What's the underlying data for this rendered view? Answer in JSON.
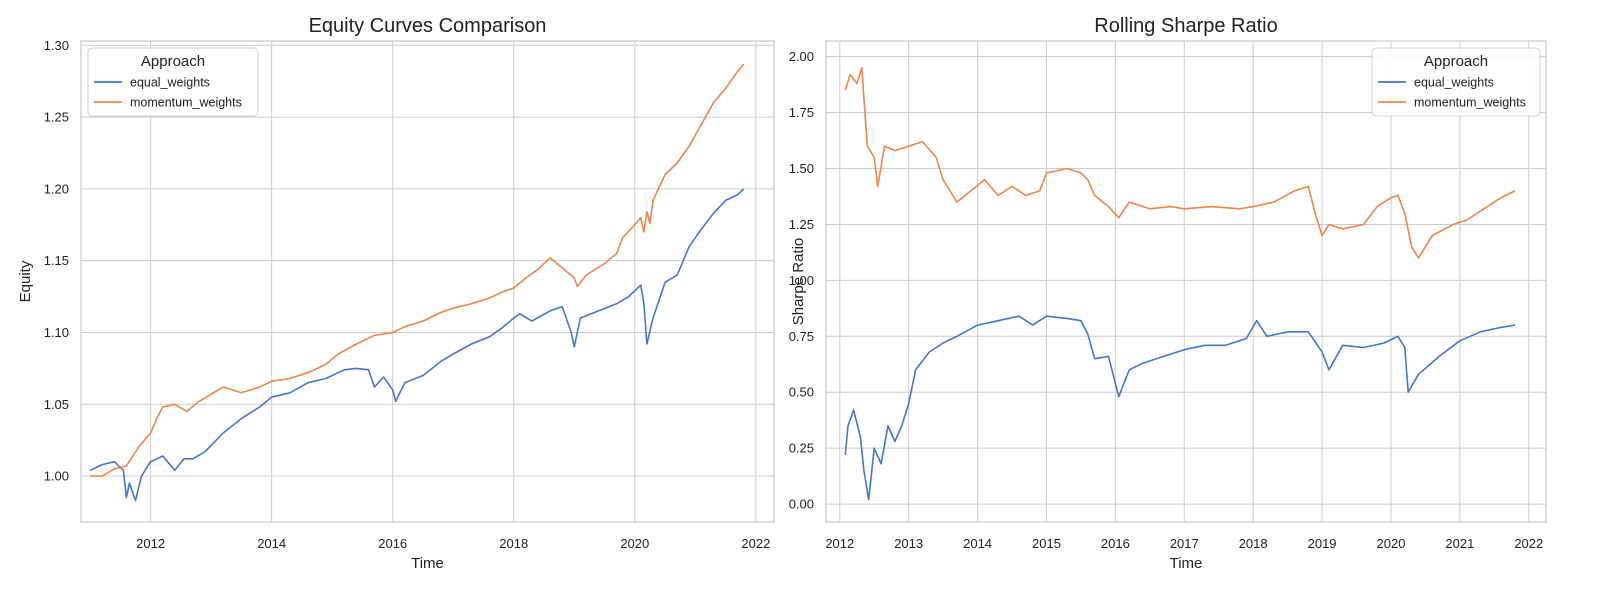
{
  "chart_data": [
    {
      "type": "line",
      "title": "Equity Curves Comparison",
      "xlabel": "Time",
      "ylabel": "Equity",
      "xlim": [
        2010.85,
        2022.3
      ],
      "ylim": [
        0.968,
        1.303
      ],
      "x_ticks": [
        2012,
        2014,
        2016,
        2018,
        2020,
        2022
      ],
      "y_ticks": [
        1.0,
        1.05,
        1.1,
        1.15,
        1.2,
        1.25,
        1.3
      ],
      "y_tick_labels": [
        "1.00",
        "1.05",
        "1.10",
        "1.15",
        "1.20",
        "1.25",
        "1.30"
      ],
      "grid": true,
      "legend": {
        "title": "Approach",
        "placement": "upper-left"
      },
      "series": [
        {
          "name": "equal_weights",
          "color": "#4575cf",
          "x": [
            2011.0,
            2011.2,
            2011.4,
            2011.55,
            2011.6,
            2011.65,
            2011.75,
            2011.85,
            2012.0,
            2012.2,
            2012.4,
            2012.55,
            2012.7,
            2012.9,
            2013.2,
            2013.5,
            2013.8,
            2014.0,
            2014.3,
            2014.6,
            2014.9,
            2015.2,
            2015.4,
            2015.6,
            2015.7,
            2015.85,
            2016.0,
            2016.05,
            2016.2,
            2016.5,
            2016.8,
            2017.0,
            2017.3,
            2017.6,
            2017.8,
            2018.0,
            2018.1,
            2018.3,
            2018.6,
            2018.8,
            2018.95,
            2019.0,
            2019.1,
            2019.4,
            2019.7,
            2019.9,
            2020.1,
            2020.15,
            2020.2,
            2020.3,
            2020.5,
            2020.7,
            2020.9,
            2021.1,
            2021.3,
            2021.5,
            2021.7,
            2021.8
          ],
          "values": [
            1.004,
            1.008,
            1.01,
            1.004,
            0.985,
            0.995,
            0.983,
            1.0,
            1.01,
            1.014,
            1.004,
            1.012,
            1.012,
            1.017,
            1.03,
            1.04,
            1.048,
            1.055,
            1.058,
            1.065,
            1.068,
            1.074,
            1.075,
            1.074,
            1.062,
            1.069,
            1.06,
            1.052,
            1.065,
            1.07,
            1.08,
            1.085,
            1.092,
            1.097,
            1.103,
            1.11,
            1.113,
            1.108,
            1.115,
            1.118,
            1.1,
            1.09,
            1.11,
            1.115,
            1.12,
            1.125,
            1.133,
            1.12,
            1.092,
            1.11,
            1.135,
            1.14,
            1.16,
            1.172,
            1.183,
            1.192,
            1.196,
            1.2
          ]
        },
        {
          "name": "momentum_weights",
          "color": "#ee8549",
          "x": [
            2011.0,
            2011.2,
            2011.4,
            2011.6,
            2011.8,
            2012.0,
            2012.1,
            2012.2,
            2012.4,
            2012.6,
            2012.8,
            2013.0,
            2013.2,
            2013.5,
            2013.8,
            2014.0,
            2014.3,
            2014.6,
            2014.9,
            2015.1,
            2015.4,
            2015.7,
            2016.0,
            2016.2,
            2016.5,
            2016.8,
            2017.0,
            2017.3,
            2017.6,
            2017.8,
            2018.0,
            2018.2,
            2018.4,
            2018.6,
            2018.8,
            2019.0,
            2019.05,
            2019.2,
            2019.5,
            2019.7,
            2019.8,
            2020.0,
            2020.1,
            2020.15,
            2020.2,
            2020.25,
            2020.3,
            2020.5,
            2020.7,
            2020.9,
            2021.1,
            2021.3,
            2021.5,
            2021.7,
            2021.8
          ],
          "values": [
            1.0,
            1.0,
            1.005,
            1.007,
            1.02,
            1.03,
            1.04,
            1.048,
            1.05,
            1.045,
            1.052,
            1.057,
            1.062,
            1.058,
            1.062,
            1.066,
            1.068,
            1.072,
            1.078,
            1.085,
            1.092,
            1.098,
            1.1,
            1.104,
            1.108,
            1.114,
            1.117,
            1.12,
            1.124,
            1.128,
            1.131,
            1.138,
            1.144,
            1.152,
            1.145,
            1.138,
            1.132,
            1.14,
            1.148,
            1.155,
            1.166,
            1.175,
            1.18,
            1.17,
            1.184,
            1.176,
            1.192,
            1.21,
            1.218,
            1.23,
            1.245,
            1.26,
            1.27,
            1.282,
            1.287
          ]
        }
      ]
    },
    {
      "type": "line",
      "title": "Rolling Sharpe Ratio",
      "xlabel": "Time",
      "ylabel": "Sharpe Ratio",
      "xlim": [
        2011.8,
        2022.25
      ],
      "ylim": [
        -0.08,
        2.07
      ],
      "x_ticks": [
        2012,
        2013,
        2014,
        2015,
        2016,
        2017,
        2018,
        2019,
        2020,
        2021,
        2022
      ],
      "y_ticks": [
        0.0,
        0.25,
        0.5,
        0.75,
        1.0,
        1.25,
        1.5,
        1.75,
        2.0
      ],
      "y_tick_labels": [
        "0.00",
        "0.25",
        "0.50",
        "0.75",
        "1.00",
        "1.25",
        "1.50",
        "1.75",
        "2.00"
      ],
      "grid": true,
      "legend": {
        "title": "Approach",
        "placement": "upper-right"
      },
      "series": [
        {
          "name": "equal_weights",
          "color": "#4575cf",
          "x": [
            2012.08,
            2012.12,
            2012.2,
            2012.3,
            2012.35,
            2012.42,
            2012.5,
            2012.6,
            2012.7,
            2012.8,
            2012.9,
            2013.0,
            2013.1,
            2013.3,
            2013.5,
            2013.7,
            2014.0,
            2014.3,
            2014.6,
            2014.8,
            2015.0,
            2015.3,
            2015.5,
            2015.6,
            2015.7,
            2015.9,
            2016.05,
            2016.2,
            2016.4,
            2016.7,
            2017.0,
            2017.3,
            2017.6,
            2017.9,
            2018.05,
            2018.2,
            2018.5,
            2018.8,
            2019.0,
            2019.1,
            2019.3,
            2019.6,
            2019.9,
            2020.1,
            2020.2,
            2020.25,
            2020.4,
            2020.7,
            2021.0,
            2021.3,
            2021.6,
            2021.8
          ],
          "values": [
            0.22,
            0.35,
            0.42,
            0.3,
            0.15,
            0.02,
            0.25,
            0.18,
            0.35,
            0.28,
            0.35,
            0.45,
            0.6,
            0.68,
            0.72,
            0.75,
            0.8,
            0.82,
            0.84,
            0.8,
            0.84,
            0.83,
            0.82,
            0.76,
            0.65,
            0.66,
            0.48,
            0.6,
            0.63,
            0.66,
            0.69,
            0.71,
            0.71,
            0.74,
            0.82,
            0.75,
            0.77,
            0.77,
            0.68,
            0.6,
            0.71,
            0.7,
            0.72,
            0.75,
            0.7,
            0.5,
            0.58,
            0.66,
            0.73,
            0.77,
            0.79,
            0.8
          ]
        },
        {
          "name": "momentum_weights",
          "color": "#ee8549",
          "x": [
            2012.08,
            2012.15,
            2012.25,
            2012.32,
            2012.4,
            2012.5,
            2012.55,
            2012.65,
            2012.8,
            2013.0,
            2013.2,
            2013.4,
            2013.5,
            2013.7,
            2013.9,
            2014.1,
            2014.3,
            2014.5,
            2014.7,
            2014.9,
            2015.0,
            2015.3,
            2015.5,
            2015.6,
            2015.7,
            2015.9,
            2016.05,
            2016.2,
            2016.5,
            2016.8,
            2017.0,
            2017.4,
            2017.8,
            2018.0,
            2018.3,
            2018.6,
            2018.8,
            2018.9,
            2019.0,
            2019.1,
            2019.3,
            2019.6,
            2019.8,
            2020.0,
            2020.1,
            2020.2,
            2020.3,
            2020.4,
            2020.6,
            2020.9,
            2021.1,
            2021.4,
            2021.6,
            2021.8
          ],
          "values": [
            1.85,
            1.92,
            1.88,
            1.95,
            1.6,
            1.55,
            1.42,
            1.6,
            1.58,
            1.6,
            1.62,
            1.55,
            1.45,
            1.35,
            1.4,
            1.45,
            1.38,
            1.42,
            1.38,
            1.4,
            1.48,
            1.5,
            1.48,
            1.45,
            1.38,
            1.33,
            1.28,
            1.35,
            1.32,
            1.33,
            1.32,
            1.33,
            1.32,
            1.33,
            1.35,
            1.4,
            1.42,
            1.3,
            1.2,
            1.25,
            1.23,
            1.25,
            1.33,
            1.37,
            1.38,
            1.3,
            1.15,
            1.1,
            1.2,
            1.25,
            1.27,
            1.33,
            1.37,
            1.4
          ]
        }
      ]
    }
  ]
}
